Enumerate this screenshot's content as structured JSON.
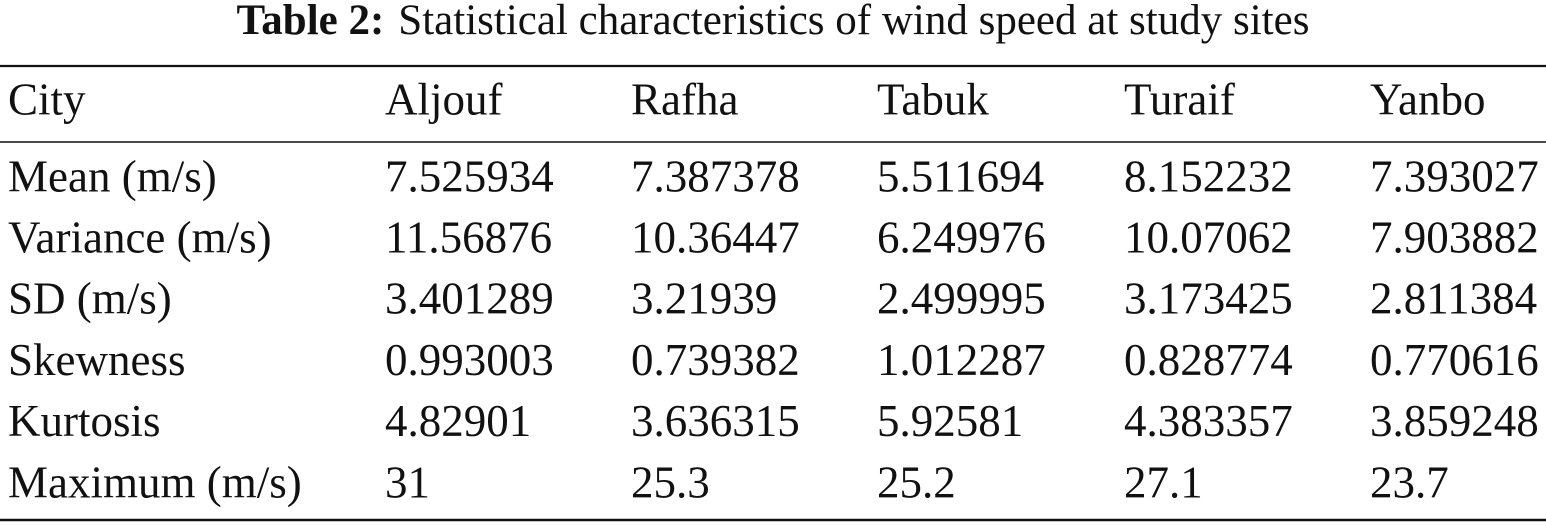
{
  "title": {
    "label": "Table 2:",
    "text": "Statistical characteristics of wind speed at study sites"
  },
  "table": {
    "header": [
      "City",
      "Aljouf",
      "Rafha",
      "Tabuk",
      "Turaif",
      "Yanbo"
    ],
    "rows": [
      [
        "Mean (m/s)",
        7.525934,
        7.387378,
        5.511694,
        8.152232,
        7.393027
      ],
      [
        "Variance (m/s)",
        11.56876,
        10.36447,
        6.249976,
        10.07062,
        7.903882
      ],
      [
        "SD (m/s)",
        3.401289,
        3.21939,
        2.499995,
        3.173425,
        2.811384
      ],
      [
        "Skewness",
        0.993003,
        0.739382,
        1.012287,
        0.828774,
        0.770616
      ],
      [
        "Kurtosis",
        4.82901,
        3.636315,
        5.92581,
        4.383357,
        3.859248
      ],
      [
        "Maximum (m/s)",
        31,
        25.3,
        25.2,
        27.1,
        23.7
      ]
    ]
  }
}
